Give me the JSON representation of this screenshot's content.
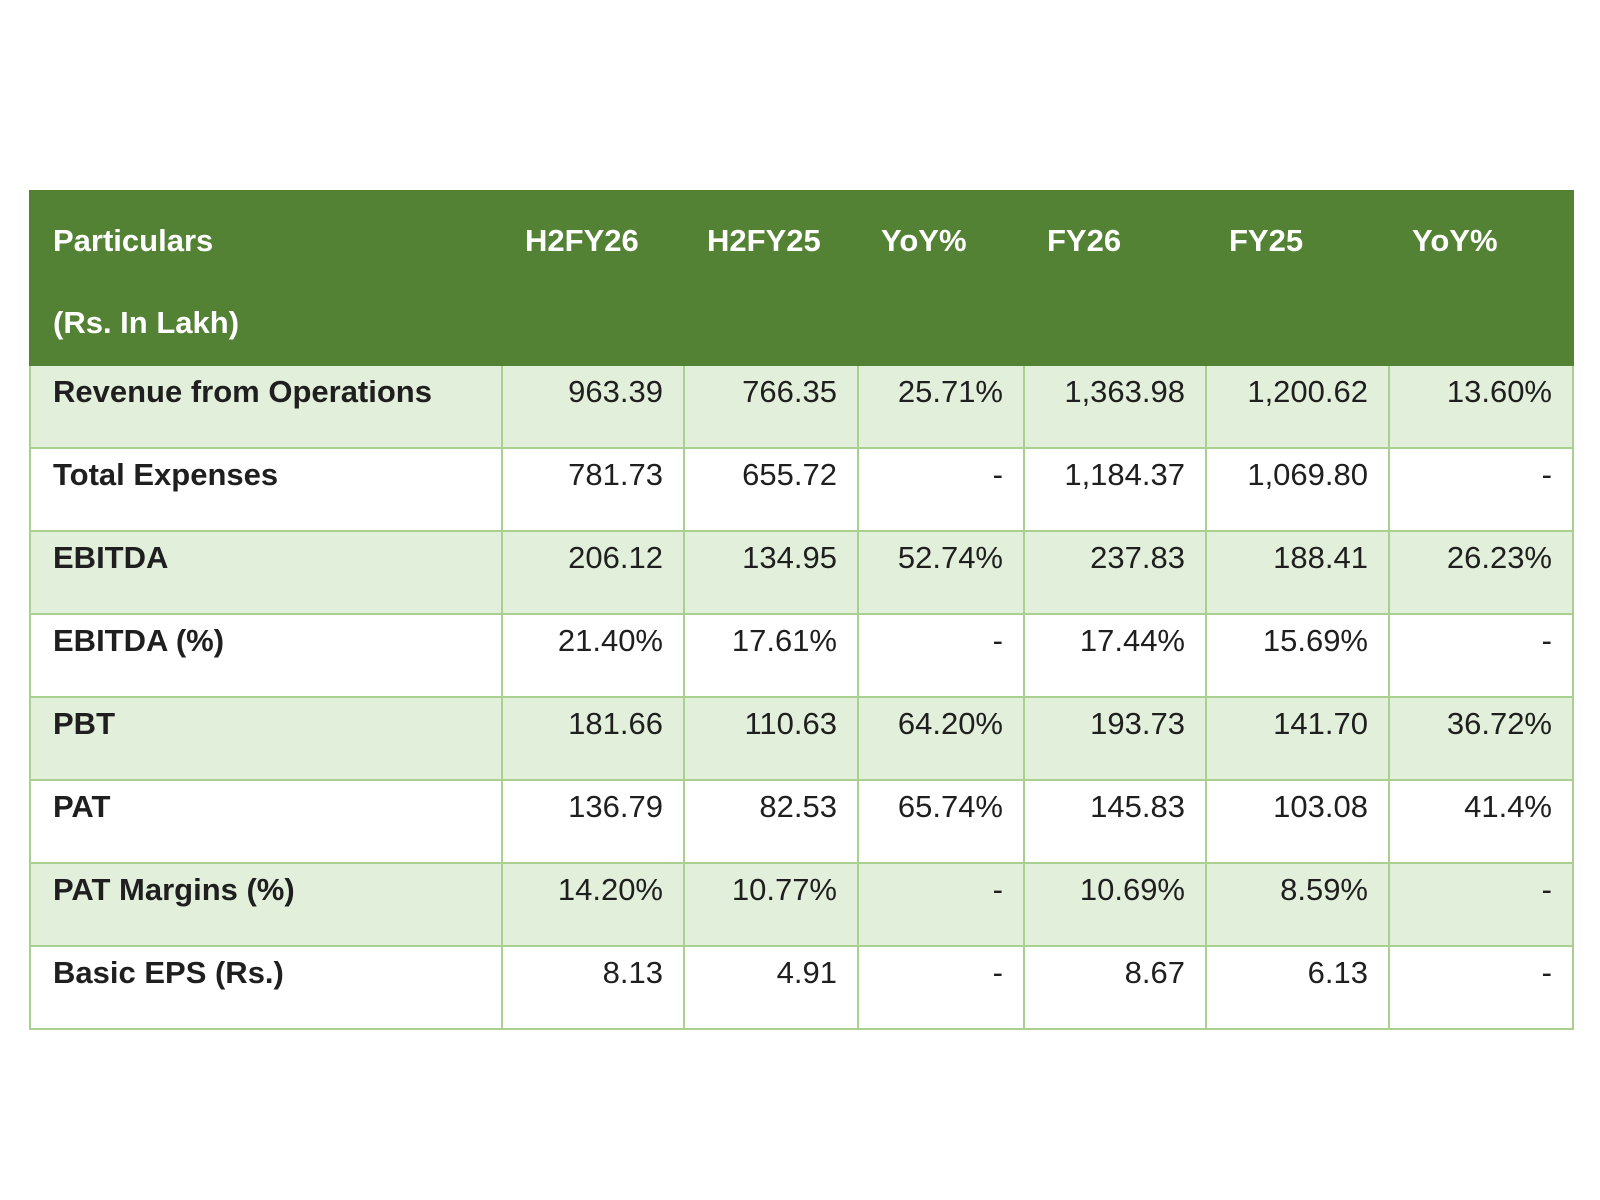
{
  "table": {
    "header": {
      "particulars_line1": "Particulars",
      "particulars_line2": "(Rs. In Lakh)",
      "columns": [
        "H2FY26",
        "H2FY25",
        "YoY%",
        "FY26",
        "FY25",
        "YoY%"
      ]
    },
    "rows": [
      {
        "label": "Revenue from Operations",
        "values": [
          "963.39",
          "766.35",
          "25.71%",
          "1,363.98",
          "1,200.62",
          "13.60%"
        ]
      },
      {
        "label": "Total Expenses",
        "values": [
          "781.73",
          "655.72",
          "-",
          "1,184.37",
          "1,069.80",
          "-"
        ]
      },
      {
        "label": "EBITDA",
        "values": [
          "206.12",
          "134.95",
          "52.74%",
          "237.83",
          "188.41",
          "26.23%"
        ]
      },
      {
        "label": "EBITDA (%)",
        "values": [
          "21.40%",
          "17.61%",
          "-",
          "17.44%",
          "15.69%",
          "-"
        ]
      },
      {
        "label": "PBT",
        "values": [
          "181.66",
          "110.63",
          "64.20%",
          "193.73",
          "141.70",
          "36.72%"
        ]
      },
      {
        "label": "PAT",
        "values": [
          "136.79",
          "82.53",
          "65.74%",
          "145.83",
          "103.08",
          "41.4%"
        ]
      },
      {
        "label": "PAT Margins (%)",
        "values": [
          "14.20%",
          "10.77%",
          "-",
          "10.69%",
          "8.59%",
          "-"
        ]
      },
      {
        "label": "Basic EPS (Rs.)",
        "values": [
          "8.13",
          "4.91",
          "-",
          "8.67",
          "6.13",
          "-"
        ]
      }
    ]
  },
  "colors": {
    "header_bg": "#548235",
    "header_text": "#ffffff",
    "shaded_row_bg": "#e2efda",
    "border": "#a9d08e"
  }
}
